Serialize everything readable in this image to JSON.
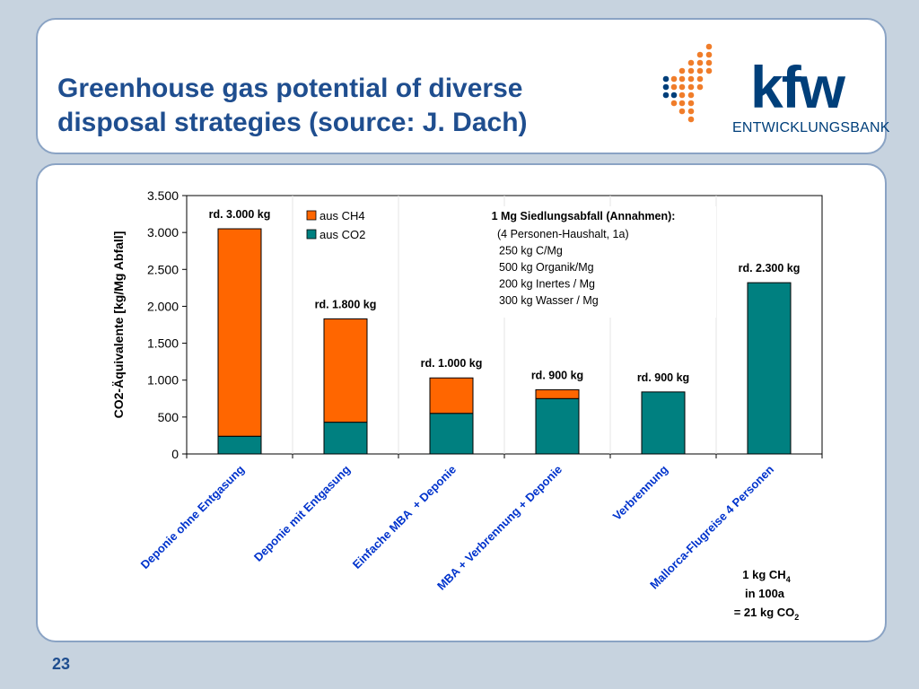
{
  "header": {
    "title": "Greenhouse gas potential of diverse\ndisposal strategies (source: J. Dach)",
    "logo_text": "kfw",
    "logo_subtext": "ENTWICKLUNGSBANK",
    "brand_colors": {
      "orange": "#f07d2a",
      "blue": "#003f7a"
    }
  },
  "footer": {
    "page_number": "23"
  },
  "chart_data": {
    "type": "bar",
    "stacked": true,
    "categories": [
      "Deponie ohne Entgasung",
      "Deponie mit Entgasung",
      "Einfache MBA  + Deponie",
      "MBA + Verbrennung + Deponie",
      "Verbrennung",
      "Mallorca-Flugreise 4 Personen"
    ],
    "series": [
      {
        "name": "aus CO2",
        "color": "#008080",
        "values": [
          240,
          430,
          550,
          750,
          840,
          2320
        ]
      },
      {
        "name": "aus CH4",
        "color": "#ff6600",
        "values": [
          2810,
          1400,
          480,
          120,
          0,
          0
        ]
      }
    ],
    "bar_labels": [
      "rd. 3.000 kg",
      "rd. 1.800 kg",
      "rd. 1.000 kg",
      "rd. 900 kg",
      "rd. 900 kg",
      "rd. 2.300 kg"
    ],
    "ylabel": "CO2-Äquivalente [kg/Mg Abfall]",
    "ylim": [
      0,
      3500
    ],
    "yticks": [
      0,
      500,
      1000,
      1500,
      2000,
      2500,
      3000,
      3500
    ],
    "ytick_labels": [
      "0",
      "500",
      "1.000",
      "1.500",
      "2.000",
      "2.500",
      "3.000",
      "3.500"
    ],
    "grid": false,
    "legend_position": "top-left",
    "annotation": {
      "title": "1 Mg Siedlungsabfall (Annahmen):",
      "lines": [
        "(4 Personen-Haushalt, 1a)",
        "250 kg C/Mg",
        "500 kg Organik/Mg",
        "200 kg Inertes / Mg",
        "300 kg Wasser / Mg"
      ]
    },
    "footnote": {
      "line1": "1 kg CH",
      "line1_sub": "4",
      "line2": "in 100a",
      "line3": "= 21 kg CO",
      "line3_sub": "2"
    }
  }
}
